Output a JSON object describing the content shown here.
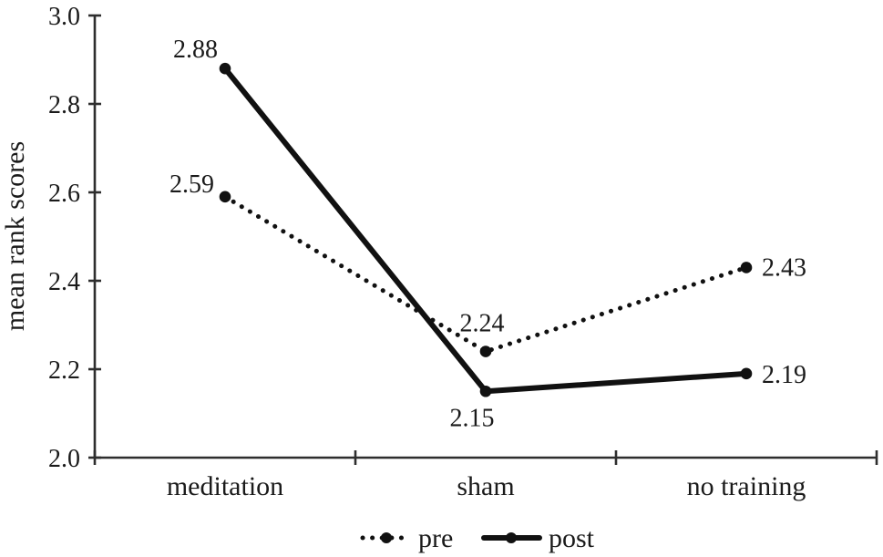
{
  "chart_data": {
    "type": "line",
    "title": "",
    "xlabel": "",
    "ylabel": "mean rank scores",
    "categories": [
      "meditation",
      "sham",
      "no training"
    ],
    "ylim": [
      2.0,
      3.0
    ],
    "yticks": [
      2.0,
      2.2,
      2.4,
      2.6,
      2.8,
      3.0
    ],
    "ytick_labels": [
      "2.0",
      "2.2",
      "2.4",
      "2.6",
      "2.8",
      "3.0"
    ],
    "grid": false,
    "line_color": "#111111",
    "legend": {
      "position": "bottom-center",
      "entries": [
        "pre",
        "post"
      ]
    },
    "series": [
      {
        "name": "pre",
        "line_style": "dotted",
        "marker": "dot",
        "color": "#111111",
        "values": [
          2.59,
          2.24,
          2.43
        ],
        "point_labels": [
          "2.59",
          "2.24",
          "2.43"
        ],
        "label_placement": [
          {
            "anchor": "end",
            "dx": -12,
            "dy": -5
          },
          {
            "anchor": "middle",
            "dx": -4,
            "dy": -22
          },
          {
            "anchor": "start",
            "dx": 17,
            "dy": 9
          }
        ]
      },
      {
        "name": "post",
        "line_style": "solid",
        "marker": "dot",
        "color": "#111111",
        "values": [
          2.88,
          2.15,
          2.19
        ],
        "point_labels": [
          "2.88",
          "2.15",
          "2.19"
        ],
        "label_placement": [
          {
            "anchor": "end",
            "dx": -8,
            "dy": -12
          },
          {
            "anchor": "middle",
            "dx": -15,
            "dy": 38
          },
          {
            "anchor": "start",
            "dx": 17,
            "dy": 10
          }
        ]
      }
    ]
  }
}
